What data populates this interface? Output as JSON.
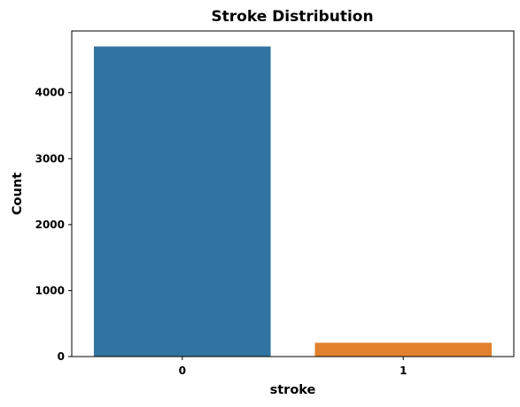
{
  "chart_data": {
    "type": "bar",
    "title": "Stroke Distribution",
    "xlabel": "stroke",
    "ylabel": "Count",
    "categories": [
      "0",
      "1"
    ],
    "values": [
      4700,
      209
    ],
    "ylim": [
      0,
      4935
    ],
    "yticks": [
      0,
      1000,
      2000,
      3000,
      4000
    ],
    "ytick_labels": [
      "0",
      "1000",
      "2000",
      "3000",
      "4000"
    ],
    "colors": [
      "#3274a1",
      "#e1812c"
    ],
    "grid": false
  }
}
